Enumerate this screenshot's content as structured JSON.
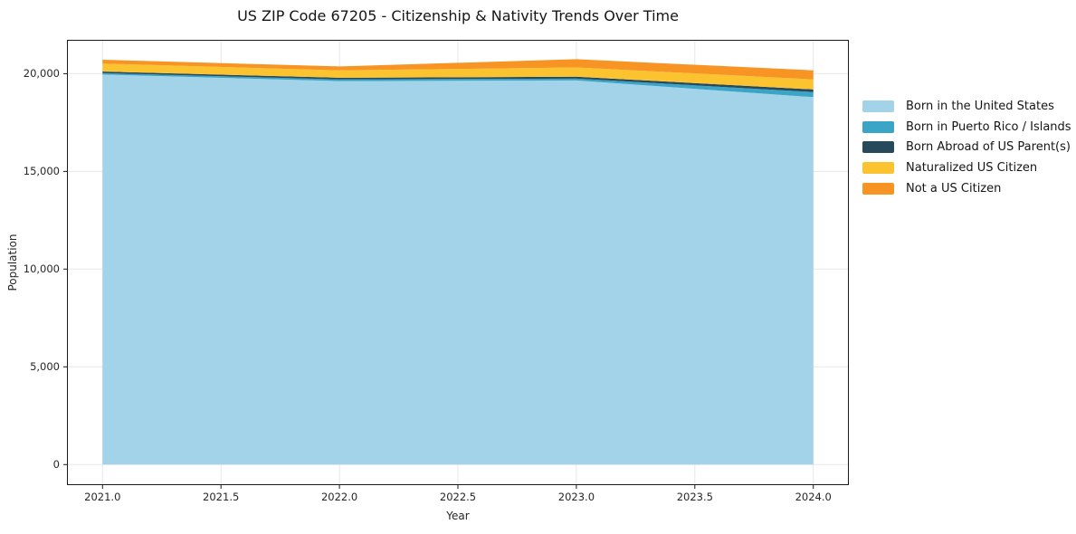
{
  "title": "US ZIP Code 67205 - Citizenship & Nativity Trends Over Time",
  "chart_data": {
    "type": "area",
    "stacked": true,
    "title": "US ZIP Code 67205 - Citizenship & Nativity Trends Over Time",
    "xlabel": "Year",
    "ylabel": "Population",
    "x": [
      2021,
      2022,
      2023,
      2024
    ],
    "series": [
      {
        "name": "Born in the United States",
        "color": "#a3d3e8",
        "values": [
          19950,
          19620,
          19650,
          18800
        ]
      },
      {
        "name": "Born in Puerto Rico / Islands",
        "color": "#3aa5c6",
        "values": [
          80,
          85,
          95,
          260
        ]
      },
      {
        "name": "Born Abroad of US Parent(s)",
        "color": "#26495c",
        "values": [
          80,
          85,
          95,
          135
        ]
      },
      {
        "name": "Naturalized US Citizen",
        "color": "#fcc330",
        "values": [
          400,
          380,
          480,
          510
        ]
      },
      {
        "name": "Not a US Citizen",
        "color": "#f79423",
        "values": [
          200,
          200,
          420,
          465
        ]
      }
    ],
    "totals": [
      20710,
      20370,
      20740,
      20170
    ],
    "xticks": [
      2021.0,
      2021.5,
      2022.0,
      2022.5,
      2023.0,
      2023.5,
      2024.0
    ],
    "xtick_labels": [
      "2021.0",
      "2021.5",
      "2022.0",
      "2022.5",
      "2023.0",
      "2023.5",
      "2024.0"
    ],
    "yticks": [
      0,
      5000,
      10000,
      15000,
      20000
    ],
    "ytick_labels": [
      "0",
      "5,000",
      "10,000",
      "15,000",
      "20,000"
    ],
    "xlim": [
      2020.85,
      2024.15
    ],
    "ylim": [
      -1050,
      21730
    ],
    "grid": true,
    "legend_position": "right of plot, no frame",
    "colors": {
      "background": "#ffffff",
      "grid": "#e7e7e7",
      "spine": "#1a1a1a",
      "text": "#262626"
    }
  }
}
